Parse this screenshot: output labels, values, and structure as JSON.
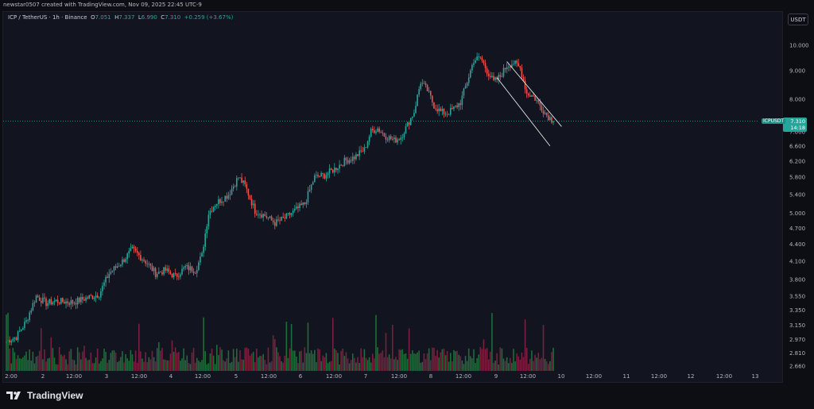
{
  "header": {
    "credit": "newstar0507 created with TradingView.com, Nov 09, 2025 22:45 UTC-9"
  },
  "legend": {
    "symbol": "ICP / TetherUS · 1h · Binance",
    "o_label": "O",
    "o": "7.051",
    "h_label": "H",
    "h": "7.337",
    "l_label": "L",
    "l": "6.990",
    "c_label": "C",
    "c": "7.310",
    "change": "+0.259 (+3.67%)"
  },
  "currency_button": "USDT",
  "price_tag": {
    "symbol": "ICPUSDT",
    "price": "7.310",
    "countdown": "14:18"
  },
  "logo_text": "TradingView",
  "colors": {
    "up": "#26a69a",
    "down": "#ef5350",
    "vol_up": "#1f6b3a",
    "vol_down": "#7a1f3d",
    "background": "#121520",
    "trendline": "#e6e6e6"
  },
  "chart_data": {
    "type": "candlestick",
    "symbol": "ICPUSDT",
    "timeframe": "1h",
    "y_scale": "log",
    "ylim": [
      2.6,
      11.0
    ],
    "y_ticks": [
      "10.000",
      "9.000",
      "8.000",
      "7.000",
      "6.600",
      "6.200",
      "5.800",
      "5.400",
      "5.000",
      "4.700",
      "4.400",
      "4.100",
      "3.800",
      "3.550",
      "3.350",
      "3.150",
      "2.970",
      "2.810",
      "2.660"
    ],
    "x_ticks": [
      "2:00",
      "2",
      "12:00",
      "3",
      "12:00",
      "4",
      "12:00",
      "5",
      "12:00",
      "6",
      "12:00",
      "7",
      "12:00",
      "8",
      "12:00",
      "9",
      "12:00",
      "10",
      "12:00",
      "11",
      "12:00",
      "12",
      "12:00",
      "13"
    ],
    "path_points": [
      [
        0,
        2.95
      ],
      [
        6,
        3.0
      ],
      [
        12,
        3.2
      ],
      [
        18,
        3.55
      ],
      [
        24,
        3.45
      ],
      [
        30,
        3.48
      ],
      [
        40,
        3.46
      ],
      [
        48,
        3.52
      ],
      [
        56,
        3.58
      ],
      [
        62,
        3.9
      ],
      [
        70,
        4.1
      ],
      [
        76,
        4.3
      ],
      [
        84,
        4.1
      ],
      [
        90,
        3.9
      ],
      [
        96,
        3.95
      ],
      [
        102,
        3.85
      ],
      [
        108,
        4.0
      ],
      [
        114,
        3.95
      ],
      [
        118,
        4.2
      ],
      [
        122,
        5.0
      ],
      [
        126,
        5.2
      ],
      [
        134,
        5.4
      ],
      [
        140,
        5.8
      ],
      [
        144,
        5.6
      ],
      [
        150,
        5.05
      ],
      [
        156,
        4.95
      ],
      [
        162,
        4.8
      ],
      [
        168,
        4.9
      ],
      [
        174,
        5.05
      ],
      [
        180,
        5.2
      ],
      [
        186,
        5.8
      ],
      [
        192,
        5.85
      ],
      [
        198,
        6.0
      ],
      [
        204,
        6.2
      ],
      [
        210,
        6.3
      ],
      [
        216,
        6.5
      ],
      [
        220,
        7.0
      ],
      [
        224,
        7.1
      ],
      [
        228,
        6.9
      ],
      [
        234,
        6.75
      ],
      [
        238,
        6.85
      ],
      [
        242,
        7.2
      ],
      [
        246,
        7.6
      ],
      [
        250,
        8.6
      ],
      [
        254,
        8.3
      ],
      [
        258,
        7.8
      ],
      [
        262,
        7.6
      ],
      [
        266,
        7.55
      ],
      [
        270,
        7.7
      ],
      [
        274,
        7.9
      ],
      [
        278,
        8.6
      ],
      [
        282,
        9.4
      ],
      [
        286,
        9.5
      ],
      [
        290,
        9.0
      ],
      [
        294,
        8.6
      ],
      [
        298,
        8.8
      ],
      [
        302,
        9.2
      ],
      [
        306,
        9.3
      ],
      [
        310,
        9.1
      ],
      [
        314,
        8.2
      ],
      [
        318,
        8.1
      ],
      [
        322,
        7.8
      ],
      [
        326,
        7.5
      ],
      [
        330,
        7.31
      ]
    ],
    "channel": {
      "upper": [
        [
          302,
          9.35
        ],
        [
          335,
          7.15
        ]
      ],
      "lower": [
        [
          296,
          8.75
        ],
        [
          328,
          6.6
        ]
      ]
    },
    "last_price": 7.31
  }
}
